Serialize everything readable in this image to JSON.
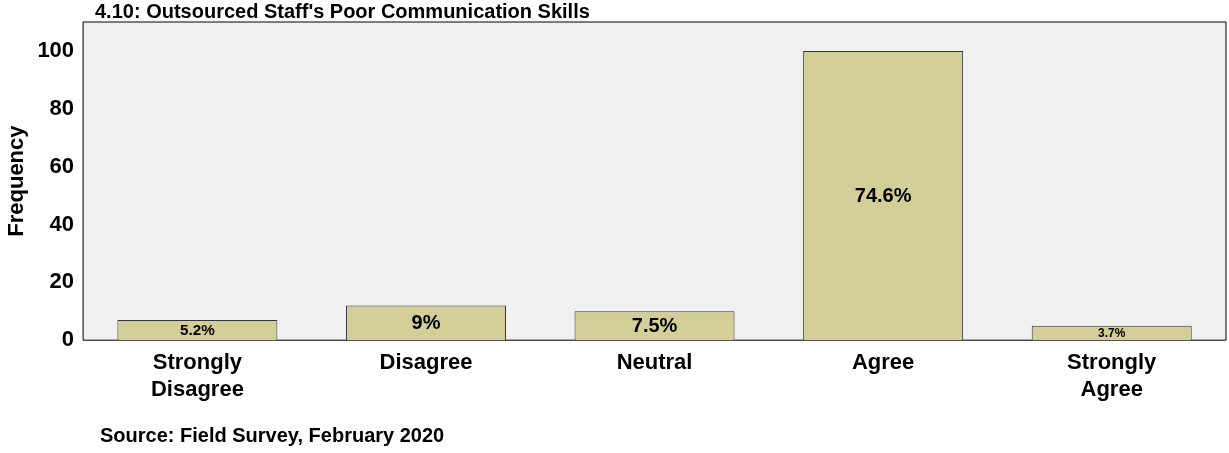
{
  "chart_data": {
    "type": "bar",
    "title": "4.10: Outsourced Staff's Poor Communication Skills",
    "ylabel": "Frequency",
    "categories": [
      "Strongly Disagree",
      "Disagree",
      "Neutral",
      "Agree",
      "Strongly Agree"
    ],
    "values": [
      7,
      12,
      10,
      100,
      5
    ],
    "color": "#d3ce97",
    "ylim": [
      0,
      110
    ],
    "yticks": [
      0,
      20,
      40,
      60,
      80,
      100
    ],
    "grid": false,
    "legend": false,
    "annotations": [
      "5.2%",
      "9%",
      "7.5%",
      "74.6%",
      "3.7%",
      "Source: Field Survey, February 2020"
    ]
  }
}
